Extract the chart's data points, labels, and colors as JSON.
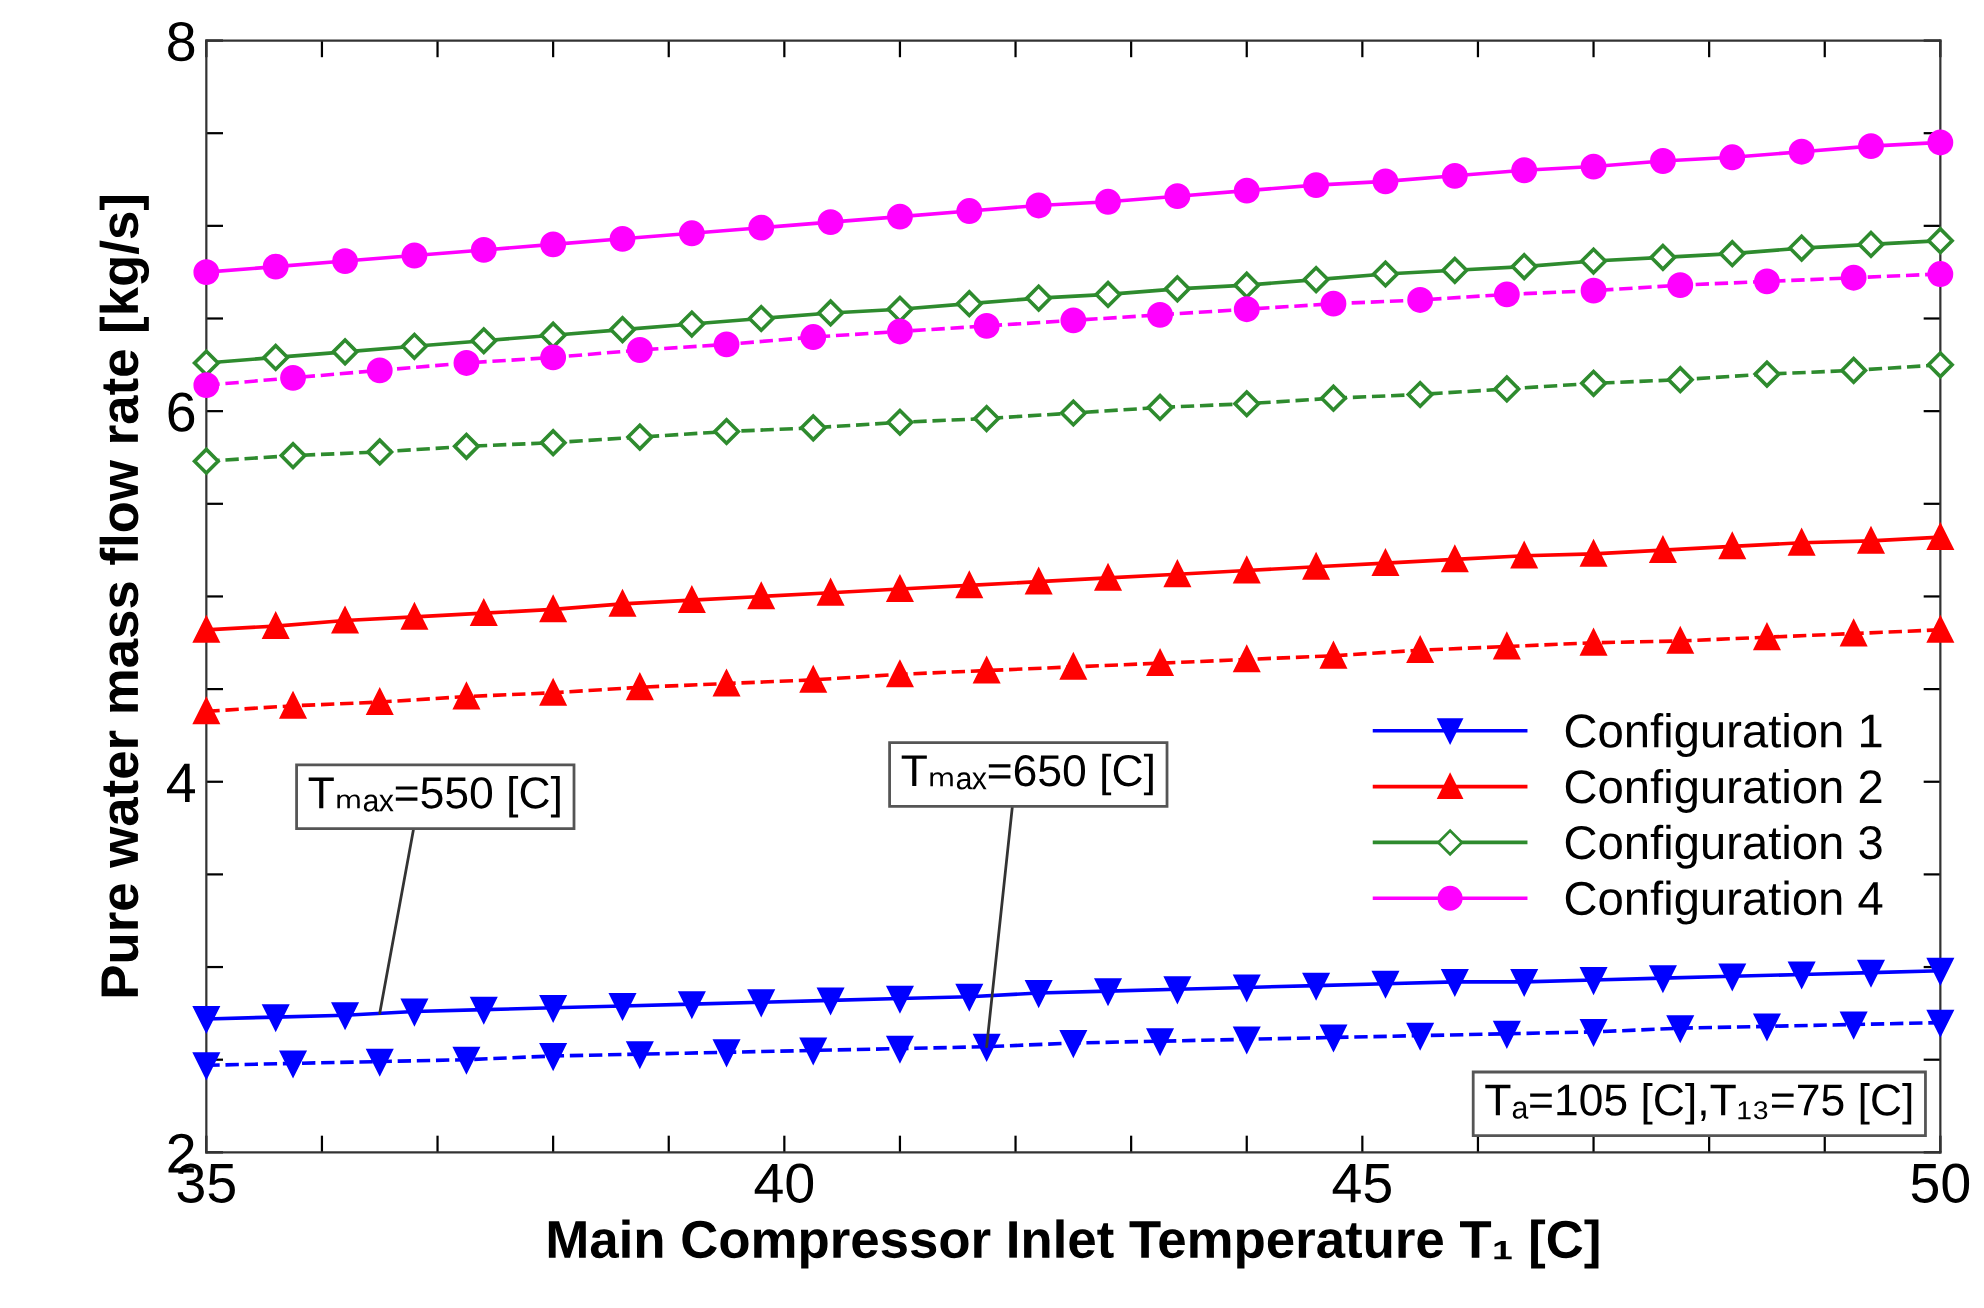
{
  "chart_data": {
    "type": "line",
    "xlabel": "Main Compressor Inlet Temperature T₁ [C]",
    "ylabel": "Pure water mass flow rate [kg/s]",
    "xlim": [
      35,
      50
    ],
    "ylim": [
      2,
      8
    ],
    "xticks": [
      35,
      {
        "value": 36,
        "label": null
      },
      {
        "value": 37,
        "label": null
      },
      {
        "value": 38,
        "label": null
      },
      {
        "value": 39,
        "label": null
      },
      40,
      {
        "value": 41,
        "label": null
      },
      {
        "value": 42,
        "label": null
      },
      {
        "value": 43,
        "label": null
      },
      {
        "value": 44,
        "label": null
      },
      45,
      {
        "value": 46,
        "label": null
      },
      {
        "value": 47,
        "label": null
      },
      {
        "value": 48,
        "label": null
      },
      {
        "value": 49,
        "label": null
      },
      50
    ],
    "yticks": [
      2,
      {
        "value": 2.5,
        "label": null
      },
      {
        "value": 3,
        "label": null
      },
      {
        "value": 3.5,
        "label": null
      },
      4,
      {
        "value": 4.5,
        "label": null
      },
      {
        "value": 5,
        "label": null
      },
      {
        "value": 5.5,
        "label": null
      },
      6,
      {
        "value": 6.5,
        "label": null
      },
      {
        "value": 7,
        "label": null
      },
      {
        "value": 7.5,
        "label": null
      },
      8
    ],
    "grid": false,
    "legend": "right",
    "series": [
      {
        "name": "Configuration 1",
        "color": "#0000ff",
        "marker": "triangle_down",
        "line_style": "solid",
        "x": [
          35,
          35.6,
          36.2,
          36.8,
          37.4,
          38,
          38.6,
          39.2,
          39.8,
          40.4,
          41,
          41.6,
          42.2,
          42.8,
          43.4,
          44,
          44.6,
          45.2,
          45.8,
          46.4,
          47,
          47.6,
          48.2,
          48.8,
          49.4,
          50
        ],
        "values": [
          2.72,
          2.73,
          2.74,
          2.76,
          2.77,
          2.78,
          2.79,
          2.8,
          2.81,
          2.82,
          2.83,
          2.84,
          2.86,
          2.87,
          2.88,
          2.89,
          2.9,
          2.91,
          2.92,
          2.92,
          2.93,
          2.94,
          2.95,
          2.96,
          2.97,
          2.98
        ]
      },
      {
        "name": "Configuration 2",
        "color": "#ff0000",
        "marker": "triangle",
        "line_style": "solid",
        "x": [
          35,
          35.6,
          36.2,
          36.8,
          37.4,
          38,
          38.6,
          39.2,
          39.8,
          40.4,
          41,
          41.6,
          42.2,
          42.8,
          43.4,
          44,
          44.6,
          45.2,
          45.8,
          46.4,
          47,
          47.6,
          48.2,
          48.8,
          49.4,
          50
        ],
        "values": [
          4.82,
          4.84,
          4.87,
          4.89,
          4.91,
          4.93,
          4.96,
          4.98,
          5.0,
          5.02,
          5.04,
          5.06,
          5.08,
          5.1,
          5.12,
          5.14,
          5.16,
          5.18,
          5.2,
          5.22,
          5.23,
          5.25,
          5.27,
          5.29,
          5.3,
          5.32
        ]
      },
      {
        "name": "Configuration 3",
        "color": "#2e8b2e",
        "marker": "diamond",
        "line_style": "solid",
        "x": [
          35,
          35.6,
          36.2,
          36.8,
          37.4,
          38,
          38.6,
          39.2,
          39.8,
          40.4,
          41,
          41.6,
          42.2,
          42.8,
          43.4,
          44,
          44.6,
          45.2,
          45.8,
          46.4,
          47,
          47.6,
          48.2,
          48.8,
          49.4,
          50
        ],
        "values": [
          6.26,
          6.29,
          6.32,
          6.35,
          6.38,
          6.41,
          6.44,
          6.47,
          6.5,
          6.53,
          6.55,
          6.58,
          6.61,
          6.63,
          6.66,
          6.68,
          6.71,
          6.74,
          6.76,
          6.78,
          6.81,
          6.83,
          6.85,
          6.88,
          6.9,
          6.92
        ]
      },
      {
        "name": "Configuration 4",
        "color": "#ff00ff",
        "marker": "circle",
        "line_style": "solid",
        "x": [
          35,
          35.6,
          36.2,
          36.8,
          37.4,
          38,
          38.6,
          39.2,
          39.8,
          40.4,
          41,
          41.6,
          42.2,
          42.8,
          43.4,
          44,
          44.6,
          45.2,
          45.8,
          46.4,
          47,
          47.6,
          48.2,
          48.8,
          49.4,
          50
        ],
        "values": [
          6.75,
          6.78,
          6.81,
          6.84,
          6.87,
          6.9,
          6.93,
          6.96,
          6.99,
          7.02,
          7.05,
          7.08,
          7.11,
          7.13,
          7.16,
          7.19,
          7.22,
          7.24,
          7.27,
          7.3,
          7.32,
          7.35,
          7.37,
          7.4,
          7.43,
          7.45
        ]
      },
      {
        "color": "#0000ff",
        "marker": "triangle_down",
        "line_style": "dashed",
        "x": [
          35,
          35.75,
          36.5,
          37.25,
          38,
          38.75,
          39.5,
          40.25,
          41,
          41.75,
          42.5,
          43.25,
          44,
          44.75,
          45.5,
          46.25,
          47,
          47.75,
          48.5,
          49.25,
          50
        ],
        "values": [
          2.47,
          2.48,
          2.49,
          2.5,
          2.52,
          2.53,
          2.54,
          2.55,
          2.56,
          2.57,
          2.59,
          2.6,
          2.61,
          2.62,
          2.63,
          2.64,
          2.65,
          2.67,
          2.68,
          2.69,
          2.7
        ]
      },
      {
        "color": "#ff0000",
        "marker": "triangle",
        "line_style": "dashed",
        "x": [
          35,
          35.75,
          36.5,
          37.25,
          38,
          38.75,
          39.5,
          40.25,
          41,
          41.75,
          42.5,
          43.25,
          44,
          44.75,
          45.5,
          46.25,
          47,
          47.75,
          48.5,
          49.25,
          50
        ],
        "values": [
          4.38,
          4.41,
          4.43,
          4.46,
          4.48,
          4.51,
          4.53,
          4.55,
          4.58,
          4.6,
          4.62,
          4.64,
          4.66,
          4.68,
          4.71,
          4.73,
          4.75,
          4.76,
          4.78,
          4.8,
          4.82
        ]
      },
      {
        "color": "#2e8b2e",
        "marker": "diamond",
        "line_style": "dashed",
        "x": [
          35,
          35.75,
          36.5,
          37.25,
          38,
          38.75,
          39.5,
          40.25,
          41,
          41.75,
          42.5,
          43.25,
          44,
          44.75,
          45.5,
          46.25,
          47,
          47.75,
          48.5,
          49.25,
          50
        ],
        "values": [
          5.73,
          5.76,
          5.78,
          5.81,
          5.83,
          5.86,
          5.89,
          5.91,
          5.94,
          5.96,
          5.99,
          6.02,
          6.04,
          6.07,
          6.09,
          6.12,
          6.15,
          6.17,
          6.2,
          6.22,
          6.25
        ]
      },
      {
        "color": "#ff00ff",
        "marker": "circle",
        "line_style": "dashed",
        "x": [
          35,
          35.75,
          36.5,
          37.25,
          38,
          38.75,
          39.5,
          40.25,
          41,
          41.75,
          42.5,
          43.25,
          44,
          44.75,
          45.5,
          46.25,
          47,
          47.75,
          48.5,
          49.25,
          50
        ],
        "values": [
          6.14,
          6.18,
          6.22,
          6.26,
          6.29,
          6.33,
          6.36,
          6.4,
          6.43,
          6.46,
          6.49,
          6.52,
          6.55,
          6.58,
          6.6,
          6.63,
          6.65,
          6.68,
          6.7,
          6.72,
          6.74
        ]
      }
    ],
    "annotations": [
      {
        "text": "Tₘₐₓ=550 [C]",
        "x": 36.5,
        "y": 2.75
      },
      {
        "text": "Tₘₐₓ=650 [C]",
        "x": 41.75,
        "y": 2.57
      },
      "Tₐ=105 [C],T₁₃=75 [C]"
    ]
  }
}
